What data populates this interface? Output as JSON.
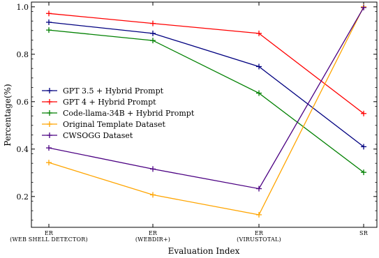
{
  "chart_data": {
    "type": "line",
    "xlabel": "Evaluation Index",
    "ylabel": "Percentage(%)",
    "categories": [
      [
        "ER",
        "(WEB SHELL DETECTOR)"
      ],
      [
        "ER",
        "(WEBDIR+)"
      ],
      [
        "ER",
        "(VIRUSTOTAL)"
      ],
      [
        "SR"
      ]
    ],
    "ylim": [
      0.07,
      1.02
    ],
    "yticks": [
      "0.2",
      "0.4",
      "0.6",
      "0.8",
      "1.0"
    ],
    "grid": false,
    "legend_position": "center-left",
    "series": [
      {
        "name": "GPT 3.5 + Hybrid Prompt",
        "color": "#000080",
        "values": [
          0.935,
          0.888,
          0.748,
          0.41
        ]
      },
      {
        "name": "GPT 4 + Hybrid Prompt",
        "color": "#ff0000",
        "values": [
          0.972,
          0.93,
          0.888,
          0.55
        ]
      },
      {
        "name": "Code-llama-34B + Hybrid Prompt",
        "color": "#008000",
        "values": [
          0.902,
          0.858,
          0.636,
          0.302
        ]
      },
      {
        "name": "Original Template Dataset",
        "color": "#ffa500",
        "values": [
          0.343,
          0.207,
          0.123,
          1.0
        ]
      },
      {
        "name": "CWSOGG Dataset",
        "color": "#4b0082",
        "values": [
          0.405,
          0.316,
          0.233,
          0.997
        ]
      }
    ]
  }
}
